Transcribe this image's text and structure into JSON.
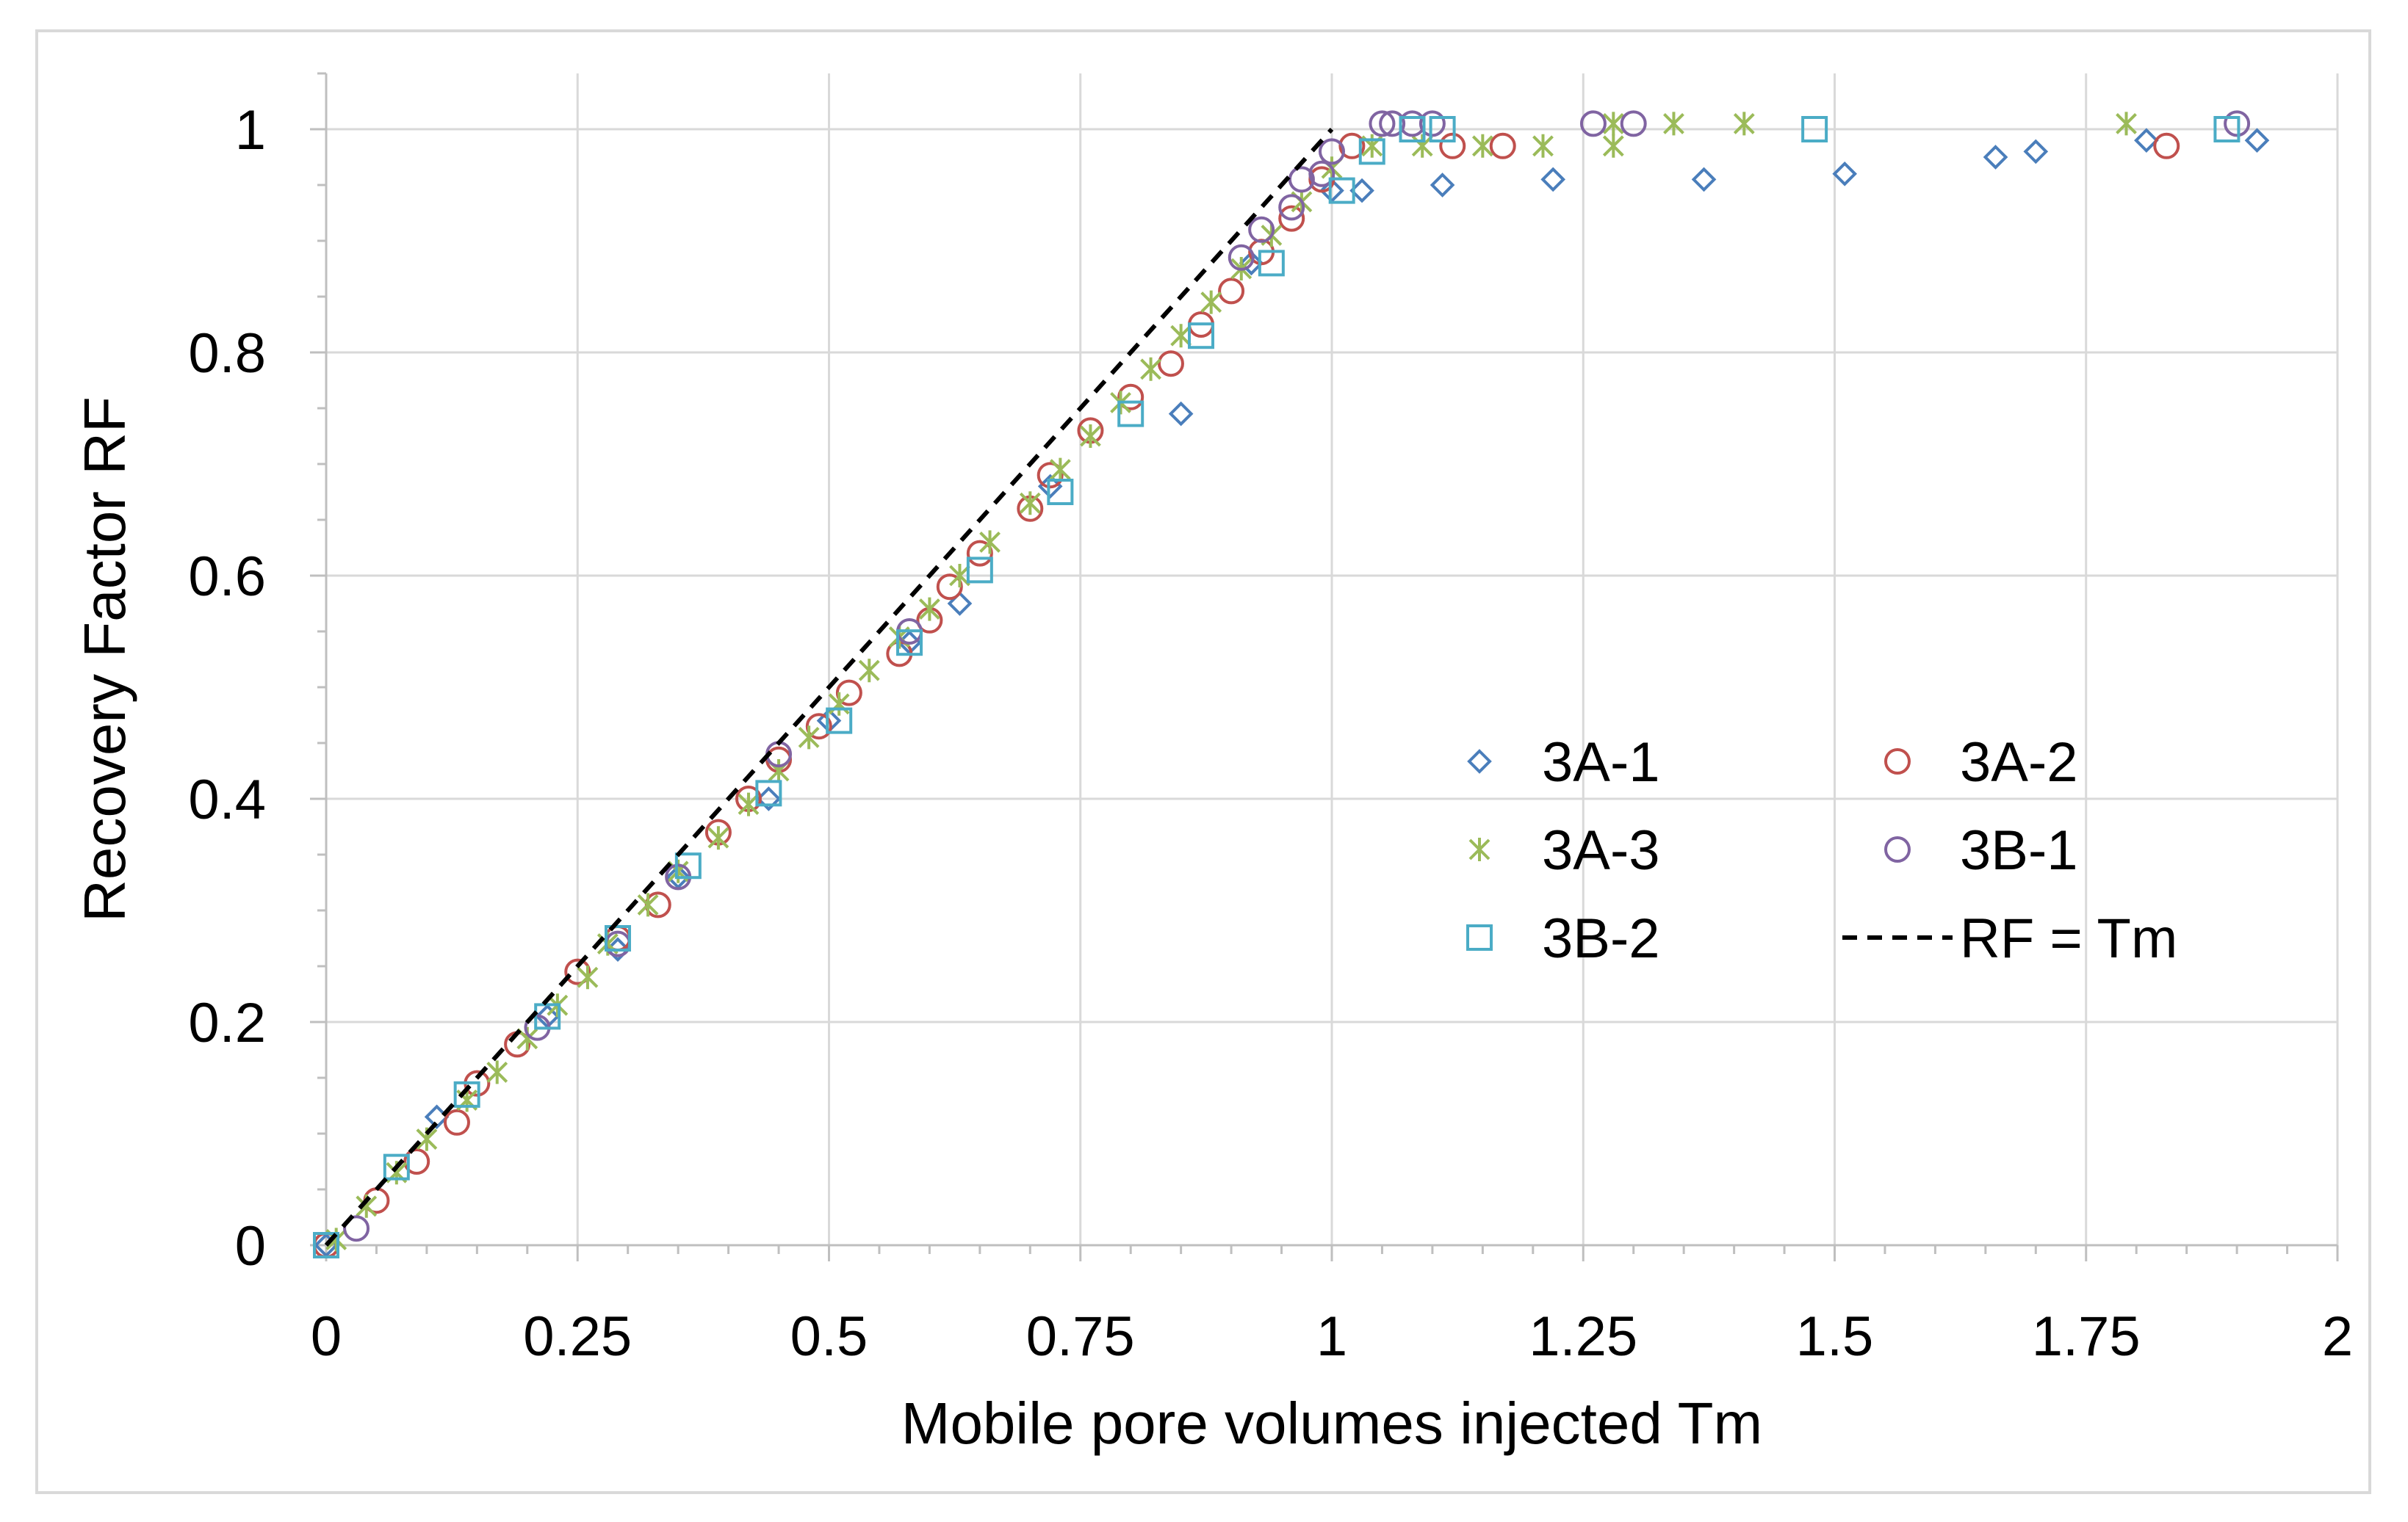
{
  "chart_data": {
    "type": "scatter",
    "title": "",
    "xlabel": "Mobile pore volumes injected Tm",
    "ylabel": "Recovery Factor RF",
    "xlim": [
      0,
      2
    ],
    "ylim": [
      0,
      1.05
    ],
    "xticks": [
      0,
      0.25,
      0.5,
      0.75,
      1,
      1.25,
      1.5,
      1.75,
      2
    ],
    "xtick_labels": [
      "0",
      "0.25",
      "0.5",
      "0.75",
      "1",
      "1.25",
      "1.5",
      "1.75",
      "2"
    ],
    "yticks": [
      0,
      0.2,
      0.4,
      0.6,
      0.8,
      1
    ],
    "ytick_labels": [
      "0",
      "0.2",
      "0.4",
      "0.6",
      "0.8",
      "1"
    ],
    "grid": true,
    "legend_position": "center-right",
    "series": [
      {
        "name": "3A-1",
        "marker": "diamond",
        "color": "#4a7ebb",
        "points": [
          [
            0,
            0
          ],
          [
            0.11,
            0.115
          ],
          [
            0.22,
            0.205
          ],
          [
            0.29,
            0.265
          ],
          [
            0.35,
            0.33
          ],
          [
            0.44,
            0.4
          ],
          [
            0.5,
            0.47
          ],
          [
            0.58,
            0.54
          ],
          [
            0.63,
            0.575
          ],
          [
            0.72,
            0.68
          ],
          [
            0.85,
            0.745
          ],
          [
            0.92,
            0.88
          ],
          [
            1.0,
            0.945
          ],
          [
            1.03,
            0.945
          ],
          [
            1.11,
            0.95
          ],
          [
            1.22,
            0.955
          ],
          [
            1.37,
            0.955
          ],
          [
            1.51,
            0.96
          ],
          [
            1.66,
            0.975
          ],
          [
            1.7,
            0.98
          ],
          [
            1.81,
            0.99
          ],
          [
            1.92,
            0.99
          ]
        ]
      },
      {
        "name": "3A-2",
        "marker": "circle",
        "color": "#c0504d",
        "points": [
          [
            0,
            0
          ],
          [
            0.05,
            0.04
          ],
          [
            0.09,
            0.075
          ],
          [
            0.13,
            0.11
          ],
          [
            0.15,
            0.145
          ],
          [
            0.19,
            0.18
          ],
          [
            0.25,
            0.245
          ],
          [
            0.29,
            0.275
          ],
          [
            0.33,
            0.305
          ],
          [
            0.39,
            0.37
          ],
          [
            0.42,
            0.4
          ],
          [
            0.45,
            0.435
          ],
          [
            0.49,
            0.465
          ],
          [
            0.52,
            0.495
          ],
          [
            0.57,
            0.53
          ],
          [
            0.6,
            0.56
          ],
          [
            0.62,
            0.59
          ],
          [
            0.65,
            0.62
          ],
          [
            0.7,
            0.66
          ],
          [
            0.72,
            0.69
          ],
          [
            0.76,
            0.73
          ],
          [
            0.8,
            0.76
          ],
          [
            0.84,
            0.79
          ],
          [
            0.87,
            0.825
          ],
          [
            0.9,
            0.855
          ],
          [
            0.93,
            0.89
          ],
          [
            0.96,
            0.92
          ],
          [
            0.99,
            0.955
          ],
          [
            1.02,
            0.985
          ],
          [
            1.12,
            0.985
          ],
          [
            1.17,
            0.985
          ],
          [
            1.83,
            0.985
          ]
        ]
      },
      {
        "name": "3A-3",
        "marker": "star",
        "color": "#9bbb59",
        "points": [
          [
            0.01,
            0.005
          ],
          [
            0.04,
            0.035
          ],
          [
            0.07,
            0.065
          ],
          [
            0.1,
            0.095
          ],
          [
            0.14,
            0.13
          ],
          [
            0.17,
            0.155
          ],
          [
            0.2,
            0.185
          ],
          [
            0.23,
            0.215
          ],
          [
            0.26,
            0.24
          ],
          [
            0.28,
            0.27
          ],
          [
            0.32,
            0.305
          ],
          [
            0.35,
            0.335
          ],
          [
            0.39,
            0.365
          ],
          [
            0.42,
            0.395
          ],
          [
            0.45,
            0.425
          ],
          [
            0.48,
            0.455
          ],
          [
            0.51,
            0.485
          ],
          [
            0.54,
            0.515
          ],
          [
            0.57,
            0.545
          ],
          [
            0.6,
            0.57
          ],
          [
            0.63,
            0.6
          ],
          [
            0.66,
            0.63
          ],
          [
            0.7,
            0.665
          ],
          [
            0.73,
            0.695
          ],
          [
            0.76,
            0.725
          ],
          [
            0.79,
            0.755
          ],
          [
            0.82,
            0.785
          ],
          [
            0.85,
            0.815
          ],
          [
            0.88,
            0.845
          ],
          [
            0.91,
            0.875
          ],
          [
            0.94,
            0.905
          ],
          [
            0.97,
            0.935
          ],
          [
            1.0,
            0.965
          ],
          [
            1.04,
            0.985
          ],
          [
            1.09,
            0.985
          ],
          [
            1.15,
            0.985
          ],
          [
            1.21,
            0.985
          ],
          [
            1.28,
            0.985
          ],
          [
            1.28,
            1.005
          ],
          [
            1.34,
            1.005
          ],
          [
            1.41,
            1.005
          ],
          [
            1.79,
            1.005
          ]
        ]
      },
      {
        "name": "3B-1",
        "marker": "circle",
        "color": "#8064a2",
        "points": [
          [
            0.03,
            0.015
          ],
          [
            0.21,
            0.195
          ],
          [
            0.29,
            0.27
          ],
          [
            0.35,
            0.33
          ],
          [
            0.45,
            0.44
          ],
          [
            0.58,
            0.55
          ],
          [
            0.91,
            0.885
          ],
          [
            0.93,
            0.91
          ],
          [
            0.96,
            0.93
          ],
          [
            0.97,
            0.955
          ],
          [
            0.99,
            0.96
          ],
          [
            1.0,
            0.98
          ],
          [
            1.05,
            1.005
          ],
          [
            1.06,
            1.005
          ],
          [
            1.08,
            1.005
          ],
          [
            1.1,
            1.005
          ],
          [
            1.26,
            1.005
          ],
          [
            1.3,
            1.005
          ],
          [
            1.9,
            1.005
          ]
        ]
      },
      {
        "name": "3B-2",
        "marker": "square",
        "color": "#4bacc6",
        "points": [
          [
            0,
            0
          ],
          [
            0.07,
            0.07
          ],
          [
            0.14,
            0.135
          ],
          [
            0.22,
            0.205
          ],
          [
            0.29,
            0.275
          ],
          [
            0.36,
            0.34
          ],
          [
            0.44,
            0.405
          ],
          [
            0.51,
            0.47
          ],
          [
            0.58,
            0.54
          ],
          [
            0.65,
            0.605
          ],
          [
            0.73,
            0.675
          ],
          [
            0.8,
            0.745
          ],
          [
            0.87,
            0.815
          ],
          [
            0.94,
            0.88
          ],
          [
            1.01,
            0.945
          ],
          [
            1.04,
            0.98
          ],
          [
            1.08,
            1.0
          ],
          [
            1.11,
            1.0
          ],
          [
            1.48,
            1.0
          ],
          [
            1.89,
            1.0
          ]
        ]
      },
      {
        "name": "RF = Tm",
        "marker": "dashed-line",
        "color": "#000000",
        "points": [
          [
            0,
            0
          ],
          [
            1,
            1
          ]
        ]
      }
    ]
  }
}
